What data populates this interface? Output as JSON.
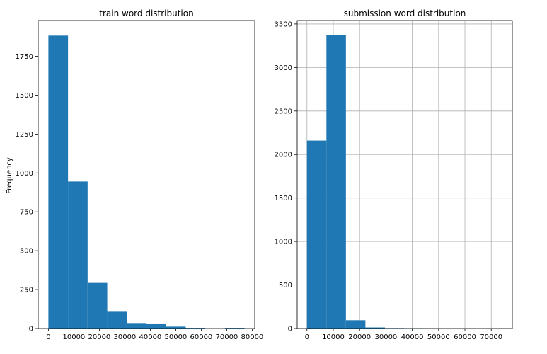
{
  "chart_data": [
    {
      "type": "bar",
      "title": "train word distribution",
      "xlabel": "",
      "ylabel": "Frequency",
      "grid": false,
      "xlim": [
        -4000,
        81000
      ],
      "ylim": [
        0,
        1980
      ],
      "bin_edges": [
        0,
        7700,
        15400,
        23100,
        30800,
        38500,
        46200,
        53900,
        61600,
        69300,
        77000
      ],
      "counts": [
        1883,
        945,
        293,
        112,
        35,
        32,
        12,
        4,
        0,
        4
      ],
      "xticks": [
        0,
        10000,
        20000,
        30000,
        40000,
        50000,
        60000,
        70000,
        80000
      ],
      "xtick_labels": [
        "0",
        "10000",
        "20000",
        "30000",
        "40000",
        "50000",
        "60000",
        "70000",
        "80000"
      ],
      "yticks": [
        0,
        250,
        500,
        750,
        1000,
        1250,
        1500,
        1750
      ],
      "ytick_labels": [
        "0",
        "250",
        "500",
        "750",
        "1000",
        "1250",
        "1500",
        "1750"
      ]
    },
    {
      "type": "bar",
      "title": "submission word distribution",
      "xlabel": "",
      "ylabel": "",
      "grid": true,
      "xlim": [
        -3700,
        78000
      ],
      "ylim": [
        0,
        3540
      ],
      "bin_edges": [
        0,
        7400,
        14800,
        22200,
        29600,
        37000,
        44400,
        51800,
        59200,
        66600,
        74000
      ],
      "counts": [
        2160,
        3375,
        95,
        12,
        5,
        3,
        1,
        0,
        0,
        1
      ],
      "xticks": [
        0,
        10000,
        20000,
        30000,
        40000,
        50000,
        60000,
        70000
      ],
      "xtick_labels": [
        "0",
        "10000",
        "20000",
        "30000",
        "40000",
        "50000",
        "60000",
        "70000"
      ],
      "yticks": [
        0,
        500,
        1000,
        1500,
        2000,
        2500,
        3000,
        3500
      ],
      "ytick_labels": [
        "0",
        "500",
        "1000",
        "1500",
        "2000",
        "2500",
        "3000",
        "3500"
      ]
    }
  ],
  "colors": {
    "bar": "#1f77b4",
    "grid": "#b0b0b0",
    "axis": "#000000"
  }
}
